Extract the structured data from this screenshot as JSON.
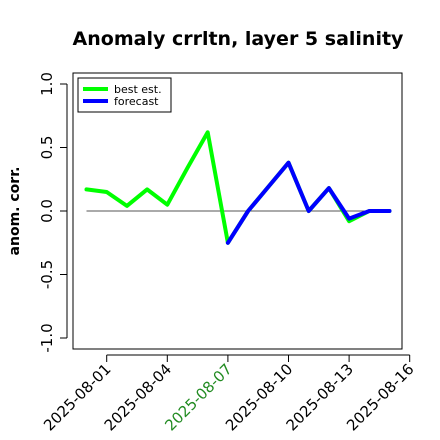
{
  "chart_data": {
    "type": "line",
    "title": "Anomaly crrltn, layer 5 salinity",
    "xlabel": "",
    "ylabel": "anom. corr.",
    "ylim": [
      -1.0,
      1.0
    ],
    "yticks": [
      "-1.0",
      "-0.5",
      "0.0",
      "0.5",
      "1.0"
    ],
    "x": [
      "2025-07-31",
      "2025-08-01",
      "2025-08-02",
      "2025-08-03",
      "2025-08-04",
      "2025-08-05",
      "2025-08-06",
      "2025-08-07",
      "2025-08-08",
      "2025-08-09",
      "2025-08-10",
      "2025-08-11",
      "2025-08-12",
      "2025-08-13",
      "2025-08-14",
      "2025-08-15"
    ],
    "xtick_labels": [
      {
        "date": "2025-08-01",
        "label": "2025-08-01",
        "color": "#000000"
      },
      {
        "date": "2025-08-04",
        "label": "2025-08-04",
        "color": "#000000"
      },
      {
        "date": "2025-08-07",
        "label": "2025-08-07",
        "color": "#228B22"
      },
      {
        "date": "2025-08-10",
        "label": "2025-08-10",
        "color": "#000000"
      },
      {
        "date": "2025-08-13",
        "label": "2025-08-13",
        "color": "#000000"
      },
      {
        "date": "2025-08-16",
        "label": "2025-08-16",
        "color": "#000000"
      }
    ],
    "series": [
      {
        "name": "best est.",
        "color": "#00ff00",
        "values": [
          0.17,
          0.15,
          0.04,
          0.17,
          0.05,
          0.34,
          0.62,
          -0.25,
          0.0,
          0.19,
          0.38,
          0.0,
          0.18,
          -0.08,
          0.0,
          0.0
        ]
      },
      {
        "name": "forecast",
        "color": "#0000ff",
        "values": [
          null,
          null,
          null,
          null,
          null,
          null,
          null,
          -0.25,
          0.0,
          0.19,
          0.38,
          0.0,
          0.18,
          -0.06,
          0.0,
          0.0
        ]
      }
    ],
    "reference_line": {
      "y": 0.0,
      "color": "#555555"
    },
    "legend": "top-left",
    "grid": false
  }
}
